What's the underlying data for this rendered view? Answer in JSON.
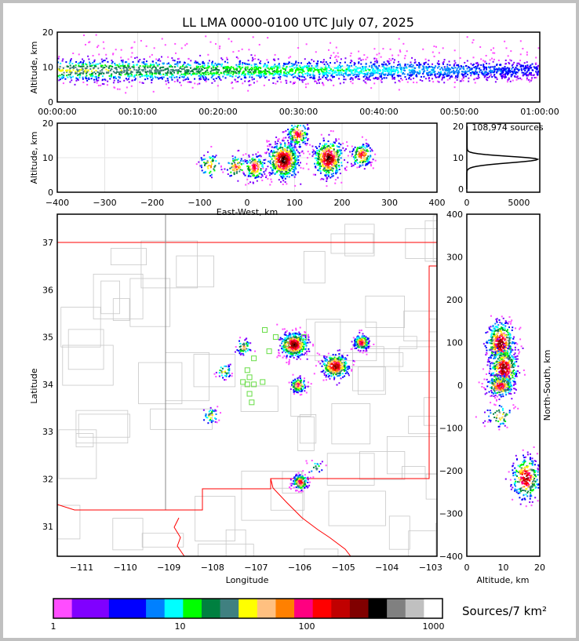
{
  "chart_data": {
    "type": "scatter",
    "title": "LL LMA 0000-0100 UTC July 07, 2025",
    "colorscale": {
      "label": "Sources/7 km²",
      "ticks": [
        "1",
        "10",
        "100",
        "1000"
      ],
      "range": [
        1,
        1000
      ],
      "colors": [
        "#ff4dff",
        "#8000ff",
        "#0000ff",
        "#0080ff",
        "#00ffff",
        "#00ff00",
        "#008040",
        "#408080",
        "#ffff00",
        "#ffc080",
        "#ff8000",
        "#ff0080",
        "#ff0000",
        "#c00000",
        "#800000",
        "#000000",
        "#808080",
        "#c0c0c0",
        "#ffffff"
      ]
    },
    "time_height": {
      "ylabel": "Altitude, km",
      "ylim": [
        0,
        20
      ],
      "yticks": [
        "0",
        "10",
        "20"
      ],
      "xticks": [
        "00:00:00",
        "00:10:00",
        "00:20:00",
        "00:30:00",
        "00:40:00",
        "00:50:00",
        "01:00:00"
      ],
      "core_altitude_km": 9,
      "core_spread_km": [
        5,
        13
      ]
    },
    "ew_height": {
      "xlabel": "East-West, km",
      "ylabel": "Altitude, km",
      "xlim": [
        -400,
        400
      ],
      "ylim": [
        0,
        20
      ],
      "xticks": [
        "−400",
        "−300",
        "−200",
        "−100",
        "0",
        "100",
        "200",
        "300",
        "400"
      ],
      "yticks": [
        "0",
        "10",
        "20"
      ],
      "clusters": [
        {
          "x": -80,
          "z": 8,
          "n": 60
        },
        {
          "x": -25,
          "z": 7.5,
          "n": 80
        },
        {
          "x": 15,
          "z": 7.5,
          "n": 150
        },
        {
          "x": 75,
          "z": 9.5,
          "n": 600
        },
        {
          "x": 105,
          "z": 17,
          "n": 160
        },
        {
          "x": 170,
          "z": 10,
          "n": 450
        },
        {
          "x": 240,
          "z": 11,
          "n": 150
        }
      ]
    },
    "altitude_histogram": {
      "annotation": "108,974 sources",
      "xlim": [
        0,
        7000
      ],
      "ylim": [
        0,
        20
      ],
      "xticks": [
        "0",
        "5000"
      ],
      "yticks": [
        "0",
        "10",
        "20"
      ],
      "peak_altitude_km": 9.5,
      "peak_count": 6800
    },
    "map": {
      "xlabel": "Longitude",
      "ylabel": "Latitude",
      "xlim": [
        -111.56,
        -102.86
      ],
      "ylim": [
        30.37,
        37.6
      ],
      "xticks": [
        "−111",
        "−110",
        "−109",
        "−108",
        "−107",
        "−106",
        "−105",
        "−104",
        "−103"
      ],
      "yticks": [
        "31",
        "32",
        "33",
        "34",
        "35",
        "36",
        "37"
      ],
      "clusters": [
        {
          "lon": -106.15,
          "lat": 34.85,
          "n": 500
        },
        {
          "lon": -105.2,
          "lat": 34.4,
          "n": 350
        },
        {
          "lon": -104.6,
          "lat": 34.9,
          "n": 200
        },
        {
          "lon": -106.05,
          "lat": 34.0,
          "n": 120
        },
        {
          "lon": -106.0,
          "lat": 31.95,
          "n": 180
        },
        {
          "lon": -107.3,
          "lat": 34.8,
          "n": 60
        },
        {
          "lon": -107.75,
          "lat": 34.3,
          "n": 40
        },
        {
          "lon": -108.05,
          "lat": 33.35,
          "n": 40
        },
        {
          "lon": -105.65,
          "lat": 32.25,
          "n": 20
        }
      ],
      "stations": [
        [
          -106.8,
          35.15
        ],
        [
          -106.55,
          35.0
        ],
        [
          -106.7,
          34.7
        ],
        [
          -105.9,
          35.0
        ],
        [
          -106.3,
          34.85
        ],
        [
          -107.05,
          34.55
        ],
        [
          -107.3,
          34.05
        ],
        [
          -107.2,
          34.0
        ],
        [
          -107.05,
          34.0
        ],
        [
          -107.15,
          33.8
        ],
        [
          -107.1,
          33.62
        ],
        [
          -106.85,
          34.05
        ],
        [
          -107.15,
          34.15
        ],
        [
          -107.2,
          34.3
        ]
      ]
    },
    "ns_height": {
      "xlabel": "Altitude, km",
      "ylabel": "North-South, km",
      "xlim": [
        0,
        20
      ],
      "ylim": [
        -400,
        400
      ],
      "xticks": [
        "0",
        "10",
        "20"
      ],
      "yticks": [
        "−400",
        "−300",
        "−200",
        "−100",
        "0",
        "100",
        "200",
        "300",
        "400"
      ],
      "clusters": [
        {
          "z": 9,
          "y": 100,
          "n": 400
        },
        {
          "z": 10,
          "y": 40,
          "n": 400
        },
        {
          "z": 9,
          "y": 0,
          "n": 200
        },
        {
          "z": 9,
          "y": -70,
          "n": 60
        },
        {
          "z": 16,
          "y": -215,
          "n": 300
        }
      ]
    }
  }
}
